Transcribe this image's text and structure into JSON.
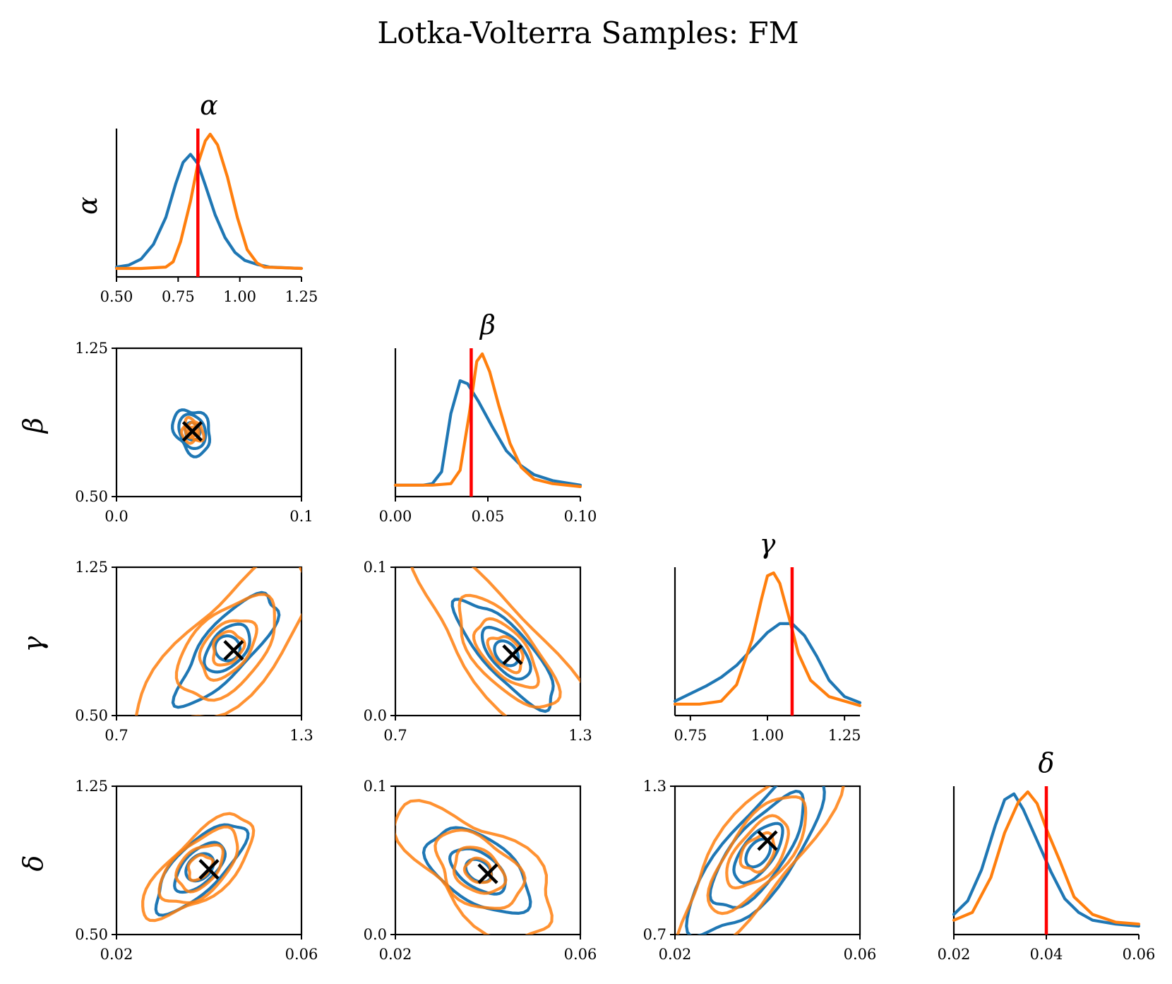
{
  "chart_data": {
    "type": "pair-plot",
    "title": "Lotka-Volterra Samples: FM",
    "parameters": [
      "α",
      "β",
      "γ",
      "δ"
    ],
    "colors": {
      "series_a": "#1f77b4",
      "series_b": "#ff7f0e",
      "truth": "#ff0000",
      "truth_marker": "#000000"
    },
    "truth": {
      "alpha": 0.83,
      "beta": 0.041,
      "gamma": 1.08,
      "delta": 0.04
    },
    "diagonal": [
      {
        "param": "α",
        "xlim": [
          0.5,
          1.25
        ],
        "xticks": [
          "0.50",
          "0.75",
          "1.00",
          "1.25"
        ],
        "xtick_values": [
          0.5,
          0.75,
          1.0,
          1.25
        ],
        "truth": 0.83,
        "series_a": [
          [
            0.5,
            0.01
          ],
          [
            0.55,
            0.025
          ],
          [
            0.6,
            0.07
          ],
          [
            0.65,
            0.18
          ],
          [
            0.7,
            0.38
          ],
          [
            0.74,
            0.63
          ],
          [
            0.77,
            0.79
          ],
          [
            0.8,
            0.85
          ],
          [
            0.83,
            0.78
          ],
          [
            0.86,
            0.62
          ],
          [
            0.9,
            0.4
          ],
          [
            0.94,
            0.23
          ],
          [
            0.98,
            0.12
          ],
          [
            1.02,
            0.06
          ],
          [
            1.07,
            0.03
          ],
          [
            1.12,
            0.01
          ],
          [
            1.25,
            0.0
          ]
        ],
        "series_b": [
          [
            0.5,
            0.0
          ],
          [
            0.6,
            0.0
          ],
          [
            0.7,
            0.01
          ],
          [
            0.73,
            0.05
          ],
          [
            0.76,
            0.2
          ],
          [
            0.8,
            0.5
          ],
          [
            0.83,
            0.78
          ],
          [
            0.86,
            0.95
          ],
          [
            0.88,
            1.0
          ],
          [
            0.91,
            0.92
          ],
          [
            0.95,
            0.68
          ],
          [
            0.99,
            0.38
          ],
          [
            1.03,
            0.14
          ],
          [
            1.07,
            0.04
          ],
          [
            1.1,
            0.01
          ],
          [
            1.25,
            0.0
          ]
        ]
      },
      {
        "param": "β",
        "xlim": [
          0.0,
          0.1
        ],
        "xticks": [
          "0.00",
          "0.05",
          "0.10"
        ],
        "xtick_values": [
          0.0,
          0.05,
          0.1
        ],
        "truth": 0.041,
        "series_a": [
          [
            0.0,
            0.02
          ],
          [
            0.015,
            0.02
          ],
          [
            0.02,
            0.03
          ],
          [
            0.025,
            0.11
          ],
          [
            0.03,
            0.5
          ],
          [
            0.035,
            0.72
          ],
          [
            0.039,
            0.7
          ],
          [
            0.045,
            0.58
          ],
          [
            0.052,
            0.42
          ],
          [
            0.06,
            0.25
          ],
          [
            0.068,
            0.15
          ],
          [
            0.075,
            0.09
          ],
          [
            0.085,
            0.05
          ],
          [
            0.1,
            0.02
          ]
        ],
        "series_b": [
          [
            0.0,
            0.02
          ],
          [
            0.02,
            0.02
          ],
          [
            0.03,
            0.03
          ],
          [
            0.035,
            0.12
          ],
          [
            0.04,
            0.5
          ],
          [
            0.044,
            0.85
          ],
          [
            0.047,
            0.9
          ],
          [
            0.051,
            0.78
          ],
          [
            0.056,
            0.55
          ],
          [
            0.062,
            0.3
          ],
          [
            0.068,
            0.14
          ],
          [
            0.075,
            0.06
          ],
          [
            0.085,
            0.03
          ],
          [
            0.1,
            0.01
          ]
        ]
      },
      {
        "param": "γ",
        "xlim": [
          0.7,
          1.3
        ],
        "xticks": [
          "0.75",
          "1.00",
          "1.25"
        ],
        "xtick_values": [
          0.75,
          1.0,
          1.25
        ],
        "truth": 1.08,
        "series_a": [
          [
            0.7,
            0.04
          ],
          [
            0.75,
            0.09
          ],
          [
            0.8,
            0.14
          ],
          [
            0.85,
            0.2
          ],
          [
            0.9,
            0.28
          ],
          [
            0.95,
            0.39
          ],
          [
            1.0,
            0.5
          ],
          [
            1.04,
            0.56
          ],
          [
            1.08,
            0.56
          ],
          [
            1.12,
            0.48
          ],
          [
            1.16,
            0.34
          ],
          [
            1.2,
            0.18
          ],
          [
            1.25,
            0.07
          ],
          [
            1.3,
            0.03
          ]
        ],
        "series_b": [
          [
            0.7,
            0.02
          ],
          [
            0.78,
            0.02
          ],
          [
            0.85,
            0.04
          ],
          [
            0.9,
            0.15
          ],
          [
            0.95,
            0.45
          ],
          [
            0.98,
            0.72
          ],
          [
            1.0,
            0.88
          ],
          [
            1.02,
            0.9
          ],
          [
            1.04,
            0.83
          ],
          [
            1.07,
            0.6
          ],
          [
            1.1,
            0.36
          ],
          [
            1.14,
            0.18
          ],
          [
            1.2,
            0.07
          ],
          [
            1.3,
            0.01
          ]
        ]
      },
      {
        "param": "δ",
        "xlim": [
          0.02,
          0.06
        ],
        "xticks": [
          "0.02",
          "0.04",
          "0.06"
        ],
        "xtick_values": [
          0.02,
          0.04,
          0.06
        ],
        "truth": 0.04,
        "series_a": [
          [
            0.02,
            0.06
          ],
          [
            0.023,
            0.13
          ],
          [
            0.026,
            0.29
          ],
          [
            0.029,
            0.52
          ],
          [
            0.031,
            0.65
          ],
          [
            0.033,
            0.68
          ],
          [
            0.035,
            0.6
          ],
          [
            0.038,
            0.44
          ],
          [
            0.041,
            0.28
          ],
          [
            0.044,
            0.14
          ],
          [
            0.047,
            0.07
          ],
          [
            0.05,
            0.03
          ],
          [
            0.055,
            0.01
          ],
          [
            0.06,
            0.0
          ]
        ],
        "series_b": [
          [
            0.02,
            0.03
          ],
          [
            0.024,
            0.07
          ],
          [
            0.028,
            0.25
          ],
          [
            0.031,
            0.48
          ],
          [
            0.034,
            0.64
          ],
          [
            0.036,
            0.69
          ],
          [
            0.038,
            0.63
          ],
          [
            0.04,
            0.5
          ],
          [
            0.043,
            0.33
          ],
          [
            0.046,
            0.15
          ],
          [
            0.05,
            0.06
          ],
          [
            0.055,
            0.02
          ],
          [
            0.06,
            0.01
          ]
        ]
      }
    ],
    "offdiagonal": [
      {
        "row": "β",
        "col": "α",
        "xlim": [
          0.0,
          0.1
        ],
        "ylim": [
          0.5,
          1.25
        ],
        "xticks": [
          "0.0",
          "0.1"
        ],
        "xtick_values": [
          0.0,
          0.1
        ],
        "yticks": [
          "0.50",
          "1.25"
        ],
        "ytick_values": [
          0.5,
          1.25
        ],
        "marker": [
          0.041,
          0.83
        ],
        "center": [
          0.041,
          0.83
        ],
        "dir": [
          -0.35,
          0.94
        ],
        "series_a": [
          [
            0.025,
            0.026,
            0.08
          ],
          [
            0.05,
            0.045,
            0.03
          ],
          [
            0.065,
            0.062,
            0.2
          ]
        ],
        "series_b": [
          [
            0.013,
            0.013,
            0.1
          ],
          [
            0.024,
            0.022,
            0.15
          ],
          [
            0.036,
            0.034,
            0.25
          ]
        ]
      },
      {
        "row": "γ",
        "col": "α",
        "xlim": [
          0.7,
          1.3
        ],
        "ylim": [
          0.5,
          1.25
        ],
        "xticks": [
          "0.7",
          "1.3"
        ],
        "xtick_values": [
          0.7,
          1.3
        ],
        "yticks": [
          "0.50",
          "1.25"
        ],
        "ytick_values": [
          0.5,
          1.25
        ],
        "marker": [
          1.08,
          0.83
        ],
        "center": [
          1.06,
          0.84
        ],
        "dir": [
          0.68,
          0.74
        ],
        "series_a": [
          [
            0.035,
            0.045,
            0.0
          ],
          [
            0.08,
            0.06,
            0.05
          ],
          [
            0.2,
            0.085,
            0.15
          ]
        ],
        "series_b": [
          [
            0.05,
            0.05,
            0.15
          ],
          [
            0.1,
            0.075,
            0.1
          ],
          [
            0.18,
            0.12,
            0.1
          ],
          [
            0.34,
            0.15,
            0.2
          ]
        ]
      },
      {
        "row": "γ",
        "col": "β",
        "xlim": [
          0.7,
          1.3
        ],
        "ylim": [
          0.0,
          0.1
        ],
        "xticks": [
          "0.7",
          "1.3"
        ],
        "xtick_values": [
          0.7,
          1.3
        ],
        "yticks": [
          "0.0",
          "0.1"
        ],
        "ytick_values": [
          0.0,
          0.1
        ],
        "marker": [
          1.08,
          0.041
        ],
        "center": [
          1.06,
          0.042
        ],
        "dir": [
          0.66,
          -0.75
        ],
        "series_a": [
          [
            0.04,
            0.035,
            0.0
          ],
          [
            0.09,
            0.055,
            0.05
          ],
          [
            0.2,
            0.08,
            0.12
          ]
        ],
        "series_b": [
          [
            0.06,
            0.045,
            0.15
          ],
          [
            0.12,
            0.07,
            0.1
          ],
          [
            0.2,
            0.1,
            0.1
          ],
          [
            0.38,
            0.14,
            0.15
          ]
        ]
      },
      {
        "row": "δ",
        "col": "α",
        "xlim": [
          0.02,
          0.06
        ],
        "ylim": [
          0.5,
          1.25
        ],
        "xticks": [
          "0.02",
          "0.06"
        ],
        "xtick_values": [
          0.02,
          0.06
        ],
        "yticks": [
          "0.50",
          "1.25"
        ],
        "ytick_values": [
          0.5,
          1.25
        ],
        "marker": [
          0.04,
          0.83
        ],
        "center": [
          0.038,
          0.84
        ],
        "dir": [
          0.72,
          0.69
        ],
        "series_a": [
          [
            0.045,
            0.04,
            0.0
          ],
          [
            0.09,
            0.055,
            0.05
          ],
          [
            0.17,
            0.08,
            0.1
          ]
        ],
        "series_b": [
          [
            0.04,
            0.035,
            0.15
          ],
          [
            0.08,
            0.06,
            0.1
          ],
          [
            0.14,
            0.085,
            0.1
          ],
          [
            0.2,
            0.1,
            0.15
          ]
        ]
      },
      {
        "row": "δ",
        "col": "β",
        "xlim": [
          0.02,
          0.06
        ],
        "ylim": [
          0.0,
          0.1
        ],
        "xticks": [
          "0.02",
          "0.06"
        ],
        "xtick_values": [
          0.02,
          0.06
        ],
        "yticks": [
          "0.0",
          "0.1"
        ],
        "ytick_values": [
          0.0,
          0.1
        ],
        "marker": [
          0.04,
          0.041
        ],
        "center": [
          0.038,
          0.043
        ],
        "dir": [
          0.82,
          -0.57
        ],
        "series_a": [
          [
            0.04,
            0.035,
            0.0
          ],
          [
            0.09,
            0.06,
            0.05
          ],
          [
            0.17,
            0.11,
            0.1
          ]
        ],
        "series_b": [
          [
            0.04,
            0.04,
            0.1
          ],
          [
            0.08,
            0.07,
            0.1
          ],
          [
            0.14,
            0.11,
            0.15
          ],
          [
            0.26,
            0.15,
            0.25
          ]
        ]
      },
      {
        "row": "δ",
        "col": "γ",
        "xlim": [
          0.02,
          0.06
        ],
        "ylim": [
          0.7,
          1.3
        ],
        "xticks": [
          "0.02",
          "0.06"
        ],
        "xtick_values": [
          0.02,
          0.06
        ],
        "yticks": [
          "0.7",
          "1.3"
        ],
        "ytick_values": [
          0.7,
          1.3
        ],
        "marker": [
          0.04,
          1.08
        ],
        "center": [
          0.038,
          1.03
        ],
        "dir": [
          0.6,
          0.8
        ],
        "series_a": [
          [
            0.045,
            0.035,
            0.0
          ],
          [
            0.1,
            0.055,
            0.05
          ],
          [
            0.2,
            0.09,
            0.1
          ],
          [
            0.3,
            0.12,
            0.12
          ]
        ],
        "series_b": [
          [
            0.06,
            0.05,
            0.15
          ],
          [
            0.12,
            0.075,
            0.1
          ],
          [
            0.2,
            0.1,
            0.1
          ],
          [
            0.34,
            0.14,
            0.15
          ]
        ]
      }
    ]
  }
}
